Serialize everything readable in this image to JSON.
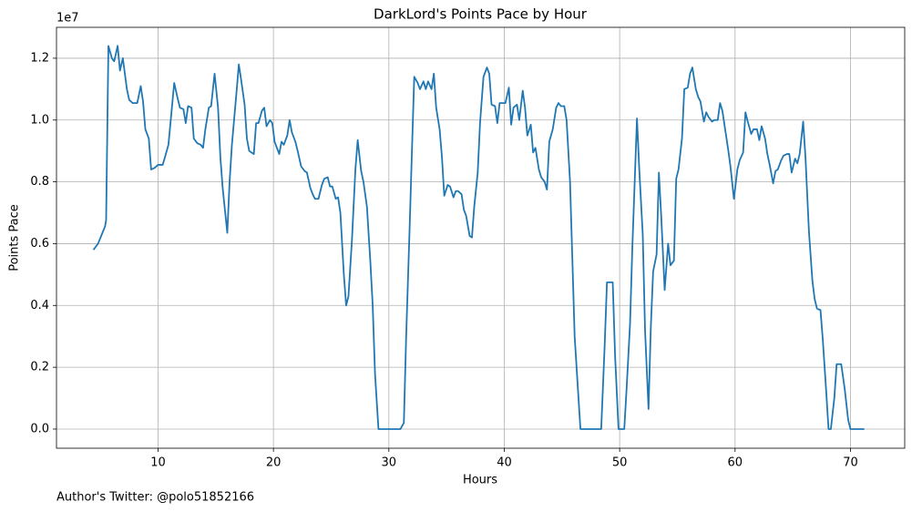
{
  "chart_data": {
    "type": "line",
    "title": "DarkLord's Points Pace by Hour",
    "xlabel": "Hours",
    "ylabel": "Points Pace",
    "y_offset_label": "1e7",
    "footer": "Author's Twitter: @polo51852166",
    "color": "#1f77b4",
    "grid": true,
    "xlim": [
      1.2,
      74.7
    ],
    "ylim": [
      -620000,
      13000000
    ],
    "xticks": [
      10,
      20,
      30,
      40,
      50,
      60,
      70
    ],
    "yticks": [
      {
        "value": 0,
        "label": "0.0"
      },
      {
        "value": 2000000,
        "label": "0.2"
      },
      {
        "value": 4000000,
        "label": "0.4"
      },
      {
        "value": 6000000,
        "label": "0.6"
      },
      {
        "value": 8000000,
        "label": "0.8"
      },
      {
        "value": 10000000,
        "label": "1.0"
      },
      {
        "value": 12000000,
        "label": "1.2"
      }
    ],
    "x": [
      4.4,
      4.8,
      5.4,
      5.5,
      5.7,
      6.0,
      6.2,
      6.5,
      6.7,
      6.95,
      7.3,
      7.5,
      7.8,
      8.2,
      8.5,
      8.7,
      8.9,
      9.2,
      9.4,
      9.7,
      10.0,
      10.4,
      10.6,
      10.9,
      11.1,
      11.4,
      11.7,
      11.9,
      12.2,
      12.4,
      12.6,
      12.9,
      13.1,
      13.4,
      13.7,
      13.9,
      14.1,
      14.4,
      14.6,
      14.9,
      15.2,
      15.4,
      15.6,
      16.0,
      16.2,
      16.4,
      16.8,
      17.0,
      17.2,
      17.5,
      17.7,
      17.9,
      18.3,
      18.5,
      18.7,
      19.0,
      19.2,
      19.4,
      19.7,
      19.9,
      20.1,
      20.5,
      20.7,
      20.9,
      21.2,
      21.4,
      21.6,
      21.9,
      22.1,
      22.4,
      22.7,
      22.9,
      23.2,
      23.4,
      23.6,
      23.9,
      24.2,
      24.4,
      24.7,
      24.9,
      25.1,
      25.4,
      25.6,
      25.8,
      26.1,
      26.3,
      26.5,
      26.8,
      27.1,
      27.3,
      27.6,
      27.8,
      28.1,
      28.4,
      28.6,
      28.8,
      29.1,
      31.0,
      31.3,
      31.5,
      31.8,
      32.0,
      32.2,
      32.5,
      32.7,
      33.0,
      33.2,
      33.4,
      33.7,
      33.9,
      34.1,
      34.4,
      34.6,
      34.8,
      35.1,
      35.3,
      35.6,
      35.8,
      36.0,
      36.3,
      36.5,
      36.7,
      37.0,
      37.2,
      37.4,
      37.7,
      37.9,
      38.2,
      38.5,
      38.7,
      38.9,
      39.2,
      39.4,
      39.6,
      39.9,
      40.1,
      40.4,
      40.6,
      40.8,
      41.1,
      41.3,
      41.6,
      41.8,
      42.0,
      42.3,
      42.5,
      42.7,
      43.0,
      43.2,
      43.5,
      43.7,
      43.9,
      44.2,
      44.5,
      44.7,
      44.9,
      45.2,
      45.4,
      45.7,
      45.9,
      46.1,
      46.4,
      46.6,
      48.4,
      48.7,
      48.9,
      49.4,
      49.6,
      49.9,
      50.4,
      50.6,
      50.9,
      51.1,
      51.5,
      51.7,
      52.0,
      52.2,
      52.5,
      52.7,
      52.9,
      53.2,
      53.4,
      53.6,
      53.9,
      54.2,
      54.4,
      54.7,
      54.9,
      55.1,
      55.4,
      55.6,
      55.9,
      56.1,
      56.3,
      56.6,
      56.8,
      57.0,
      57.3,
      57.5,
      57.7,
      58.0,
      58.2,
      58.5,
      58.7,
      58.9,
      59.2,
      59.4,
      59.6,
      59.9,
      60.2,
      60.4,
      60.7,
      60.9,
      61.1,
      61.4,
      61.6,
      61.9,
      62.1,
      62.3,
      62.6,
      62.8,
      63.0,
      63.3,
      63.5,
      63.7,
      64.0,
      64.2,
      64.5,
      64.7,
      64.9,
      65.2,
      65.4,
      65.6,
      65.9,
      66.1,
      66.4,
      66.7,
      66.9,
      67.1,
      67.4,
      67.6,
      67.9,
      68.1,
      68.3,
      68.6,
      68.8,
      69.2,
      69.5,
      69.8,
      70.0,
      71.2
    ],
    "values": [
      5800000,
      6000000,
      6550000,
      6750000,
      12400000,
      12000000,
      11900000,
      12400000,
      11600000,
      12000000,
      11000000,
      10650000,
      10550000,
      10550000,
      11100000,
      10600000,
      9700000,
      9400000,
      8400000,
      8450000,
      8550000,
      8550000,
      8800000,
      9200000,
      10000000,
      11200000,
      10700000,
      10400000,
      10350000,
      9900000,
      10450000,
      10400000,
      9400000,
      9250000,
      9200000,
      9100000,
      9700000,
      10400000,
      10450000,
      11500000,
      10400000,
      8800000,
      7800000,
      6350000,
      8000000,
      9200000,
      10900000,
      11800000,
      11300000,
      10500000,
      9400000,
      9000000,
      8900000,
      9900000,
      9900000,
      10300000,
      10400000,
      9800000,
      10000000,
      9900000,
      9300000,
      8900000,
      9300000,
      9200000,
      9500000,
      10000000,
      9600000,
      9300000,
      9000000,
      8500000,
      8350000,
      8300000,
      7800000,
      7600000,
      7450000,
      7450000,
      7900000,
      8100000,
      8150000,
      7850000,
      7850000,
      7450000,
      7500000,
      7000000,
      5000000,
      4000000,
      4300000,
      6100000,
      8400000,
      9350000,
      8350000,
      8000000,
      7200000,
      5400000,
      4000000,
      1800000,
      0,
      0,
      200000,
      3000000,
      6500000,
      9000000,
      11400000,
      11200000,
      11000000,
      11250000,
      11000000,
      11250000,
      11000000,
      11500000,
      10400000,
      9700000,
      8800000,
      7550000,
      7900000,
      7850000,
      7500000,
      7700000,
      7700000,
      7600000,
      7100000,
      6900000,
      6250000,
      6200000,
      7200000,
      8300000,
      9900000,
      11400000,
      11700000,
      11500000,
      10500000,
      10450000,
      9900000,
      10550000,
      10550000,
      10550000,
      11050000,
      9850000,
      10400000,
      10500000,
      10000000,
      10950000,
      10400000,
      9500000,
      9850000,
      8950000,
      9100000,
      8400000,
      8150000,
      8000000,
      7750000,
      9300000,
      9700000,
      10400000,
      10550000,
      10450000,
      10450000,
      10000000,
      8000000,
      5500000,
      3000000,
      1200000,
      0,
      0,
      2700000,
      4750000,
      4750000,
      2400000,
      0,
      0,
      1300000,
      3400000,
      5900000,
      10050000,
      8400000,
      6300000,
      3200000,
      650000,
      3300000,
      5100000,
      5650000,
      8300000,
      6900000,
      4500000,
      6000000,
      5300000,
      5450000,
      8100000,
      8400000,
      9400000,
      11000000,
      11050000,
      11500000,
      11700000,
      11000000,
      10750000,
      10600000,
      9950000,
      10250000,
      10100000,
      9950000,
      10000000,
      10000000,
      10550000,
      10300000,
      9550000,
      9050000,
      8500000,
      7450000,
      8400000,
      8700000,
      8950000,
      10250000,
      9950000,
      9550000,
      9700000,
      9700000,
      9350000,
      9800000,
      9400000,
      8900000,
      8550000,
      7950000,
      8350000,
      8400000,
      8700000,
      8850000,
      8900000,
      8900000,
      8300000,
      8750000,
      8600000,
      8900000,
      9950000,
      8800000,
      6400000,
      4800000,
      4200000,
      3900000,
      3850000,
      2900000,
      1200000,
      0,
      0,
      1000000,
      2100000,
      2100000,
      1300000,
      300000,
      0,
      0
    ]
  }
}
